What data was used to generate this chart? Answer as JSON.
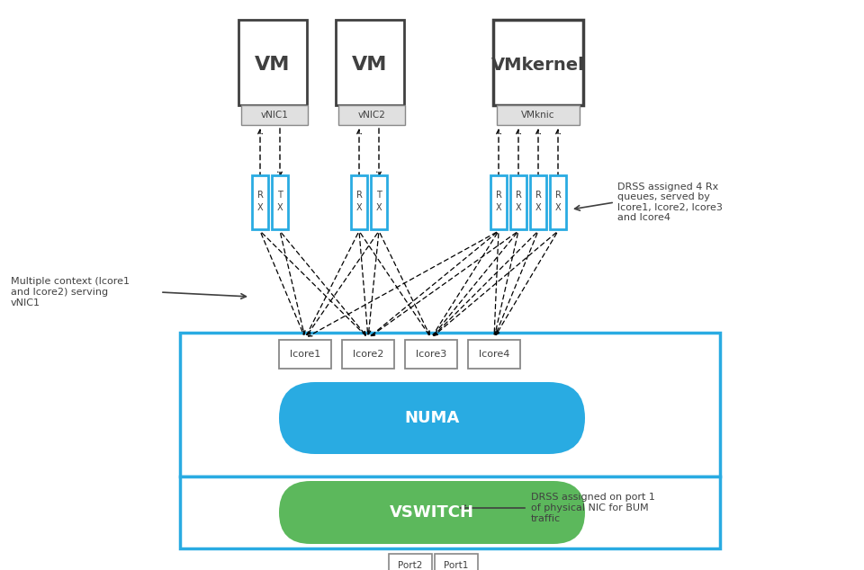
{
  "bg_color": "#ffffff",
  "blue_border": "#29ABE2",
  "dark_border": "#404040",
  "gray_border": "#888888",
  "green_color": "#5CB85C",
  "blue_color": "#29ABE2",
  "text_dark": "#404040",
  "text_white": "#ffffff",
  "annotation_right": "DRSS assigned 4 Rx\nqueues, served by\nlcore1, lcore2, lcore3\nand lcore4",
  "annotation_left": "Multiple context (lcore1\nand lcore2) serving\nvNIC1",
  "annotation_bottom": "DRSS assigned on port 1\nof physical NIC for BUM\ntraffic"
}
